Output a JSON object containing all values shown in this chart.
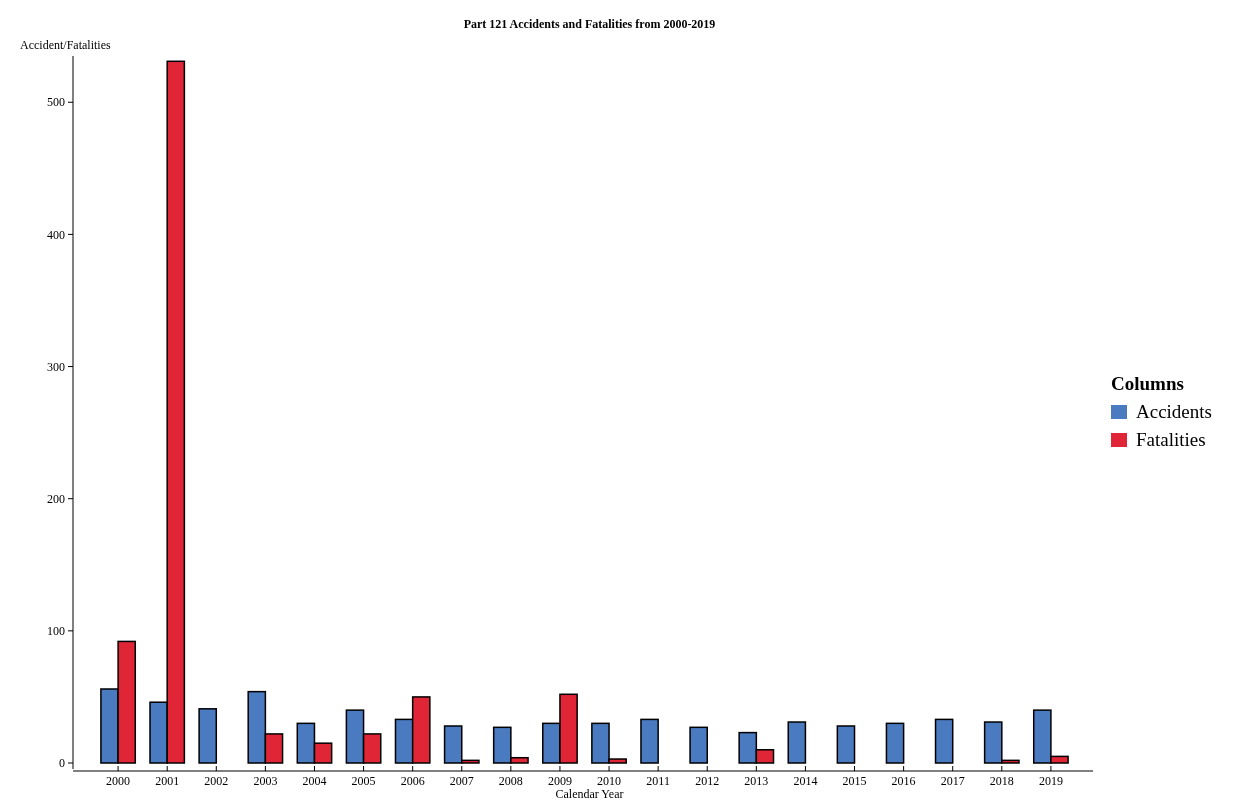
{
  "chart_data": {
    "type": "bar",
    "title": "Part 121 Accidents and Fatalities from 2000-2019",
    "xlabel": "Calendar Year",
    "ylabel": "Accident/Fatalities",
    "legend_title": "Columns",
    "legend": "right",
    "categories": [
      "2000",
      "2001",
      "2002",
      "2003",
      "2004",
      "2005",
      "2006",
      "2007",
      "2008",
      "2009",
      "2010",
      "2011",
      "2012",
      "2013",
      "2014",
      "2015",
      "2016",
      "2017",
      "2018",
      "2019"
    ],
    "series": [
      {
        "name": "Accidents",
        "color": "#4a7abf",
        "values": [
          56,
          46,
          41,
          54,
          30,
          40,
          33,
          28,
          27,
          30,
          30,
          33,
          27,
          23,
          31,
          28,
          30,
          33,
          31,
          40
        ]
      },
      {
        "name": "Fatalities",
        "color": "#e02636",
        "values": [
          92,
          531,
          0,
          22,
          15,
          22,
          50,
          2,
          4,
          52,
          3,
          0,
          0,
          10,
          0,
          0,
          0,
          0,
          2,
          5
        ]
      }
    ],
    "ylim": [
      0,
      535
    ],
    "yticks": [
      0,
      100,
      200,
      300,
      400,
      500
    ]
  }
}
